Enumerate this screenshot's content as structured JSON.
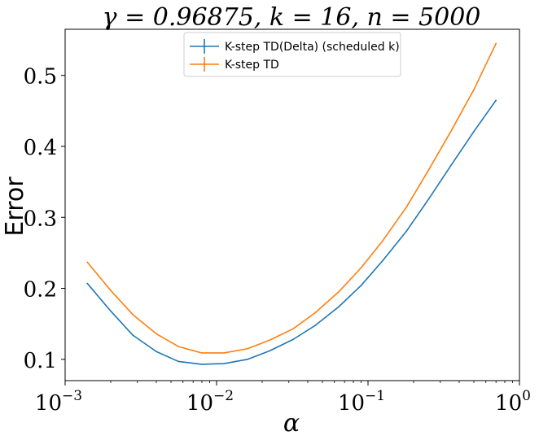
{
  "chart_data": {
    "type": "line",
    "title": "γ = 0.96875, k = 16, n = 5000",
    "xlabel": "α",
    "ylabel": "Error",
    "xscale": "log",
    "xlim": [
      0.001,
      1
    ],
    "ylim": [
      0.07,
      0.565
    ],
    "grid": false,
    "legend_position": "top-center",
    "x_tick_labels": [
      "10",
      "10",
      "10",
      "10"
    ],
    "x_tick_exponents": [
      "−3",
      "−2",
      "−1",
      "0"
    ],
    "y_ticks": [
      0.1,
      0.2,
      0.3,
      0.4,
      0.5
    ],
    "y_tick_labels": [
      "0.1",
      "0.2",
      "0.3",
      "0.4",
      "0.5"
    ],
    "x": [
      0.0014,
      0.002,
      0.0028,
      0.004,
      0.0056,
      0.008,
      0.0112,
      0.016,
      0.0224,
      0.032,
      0.045,
      0.064,
      0.09,
      0.125,
      0.18,
      0.25,
      0.35,
      0.5,
      0.7
    ],
    "series": [
      {
        "name": "K-step TD(Delta) (scheduled k)",
        "color": "#1f77b4",
        "values": [
          0.207,
          0.168,
          0.134,
          0.111,
          0.097,
          0.093,
          0.094,
          0.1,
          0.112,
          0.128,
          0.148,
          0.174,
          0.204,
          0.239,
          0.281,
          0.325,
          0.372,
          0.421,
          0.465
        ]
      },
      {
        "name": "K-step TD",
        "color": "#ff7f0e",
        "values": [
          0.237,
          0.197,
          0.163,
          0.136,
          0.118,
          0.109,
          0.109,
          0.115,
          0.127,
          0.143,
          0.166,
          0.195,
          0.229,
          0.267,
          0.315,
          0.366,
          0.42,
          0.48,
          0.545
        ]
      }
    ]
  }
}
